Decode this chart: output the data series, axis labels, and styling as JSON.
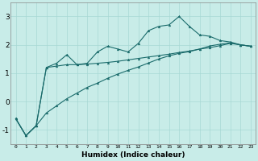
{
  "xlabel": "Humidex (Indice chaleur)",
  "bg_color": "#c8ece8",
  "line_color": "#1a6b6b",
  "grid_color": "#a8d8d4",
  "xlim": [
    -0.5,
    23.5
  ],
  "ylim": [
    -1.5,
    3.5
  ],
  "yticks": [
    -1,
    0,
    1,
    2,
    3
  ],
  "xticks": [
    0,
    1,
    2,
    3,
    4,
    5,
    6,
    7,
    8,
    9,
    10,
    11,
    12,
    13,
    14,
    15,
    16,
    17,
    18,
    19,
    20,
    21,
    22,
    23
  ],
  "x": [
    0,
    1,
    2,
    3,
    4,
    5,
    6,
    7,
    8,
    9,
    10,
    11,
    12,
    13,
    14,
    15,
    16,
    17,
    18,
    19,
    20,
    21,
    22,
    23
  ],
  "y_main": [
    -0.6,
    -1.2,
    -0.85,
    1.2,
    1.35,
    1.65,
    1.3,
    1.35,
    1.75,
    1.95,
    1.85,
    1.75,
    2.05,
    2.5,
    2.65,
    2.7,
    3.0,
    2.65,
    2.35,
    2.3,
    2.15,
    2.1,
    2.0,
    1.95
  ],
  "y_flat": [
    -0.6,
    -1.2,
    -0.85,
    1.2,
    1.25,
    1.3,
    1.3,
    1.32,
    1.35,
    1.38,
    1.42,
    1.47,
    1.52,
    1.57,
    1.62,
    1.67,
    1.73,
    1.78,
    1.85,
    1.9,
    1.97,
    2.05,
    2.0,
    1.95
  ],
  "y_linear": [
    -0.6,
    -1.2,
    -0.85,
    -0.4,
    -0.15,
    0.1,
    0.3,
    0.5,
    0.65,
    0.82,
    0.97,
    1.1,
    1.22,
    1.36,
    1.5,
    1.61,
    1.7,
    1.76,
    1.85,
    1.96,
    2.02,
    2.07,
    2.0,
    1.95
  ]
}
